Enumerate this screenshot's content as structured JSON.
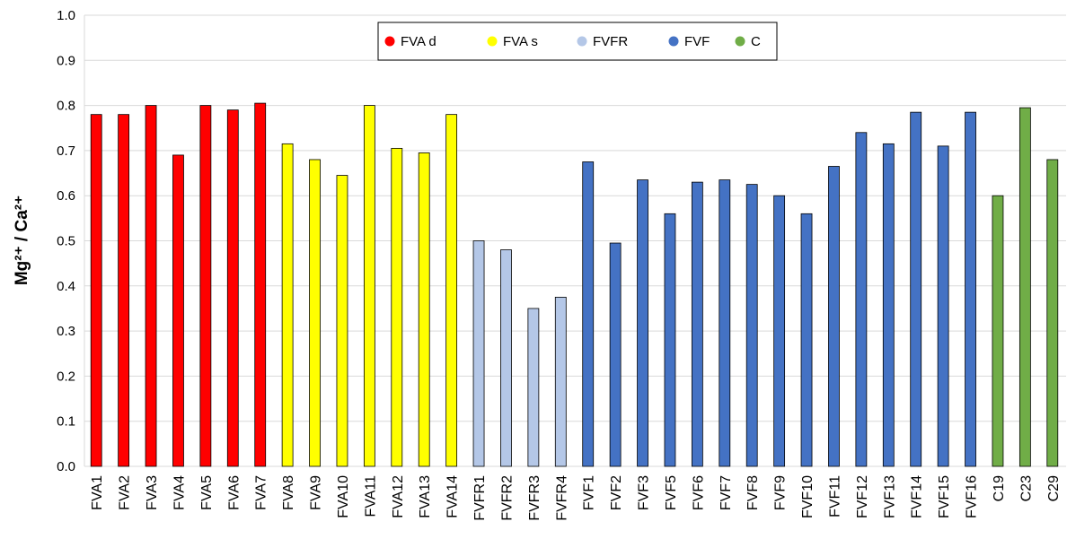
{
  "chart_data": {
    "type": "bar",
    "ylabel": "Mg²⁺ / Ca²⁺",
    "categories": [
      "FVA1",
      "FVA2",
      "FVA3",
      "FVA4",
      "FVA5",
      "FVA6",
      "FVA7",
      "FVA8",
      "FVA9",
      "FVA10",
      "FVA11",
      "FVA12",
      "FVA13",
      "FVA14",
      "FVFR1",
      "FVFR2",
      "FVFR3",
      "FVFR4",
      "FVF1",
      "FVF2",
      "FVF3",
      "FVF5",
      "FVF6",
      "FVF7",
      "FVF8",
      "FVF9",
      "FVF10",
      "FVF11",
      "FVF12",
      "FVF13",
      "FVF14",
      "FVF15",
      "FVF16",
      "C19",
      "C23",
      "C29"
    ],
    "series": [
      {
        "name": "FVA d",
        "color": "#ff0000",
        "values": [
          0.78,
          0.78,
          0.8,
          0.69,
          0.8,
          0.79,
          0.805,
          null,
          null,
          null,
          null,
          null,
          null,
          null,
          null,
          null,
          null,
          null,
          null,
          null,
          null,
          null,
          null,
          null,
          null,
          null,
          null,
          null,
          null,
          null,
          null,
          null,
          null,
          null,
          null,
          null
        ]
      },
      {
        "name": "FVA s",
        "color": "#ffff00",
        "values": [
          null,
          null,
          null,
          null,
          null,
          null,
          null,
          0.715,
          0.68,
          0.645,
          0.8,
          0.705,
          0.695,
          0.78,
          null,
          null,
          null,
          null,
          null,
          null,
          null,
          null,
          null,
          null,
          null,
          null,
          null,
          null,
          null,
          null,
          null,
          null,
          null,
          null,
          null,
          null
        ]
      },
      {
        "name": "FVFR",
        "color": "#b4c7e7",
        "values": [
          null,
          null,
          null,
          null,
          null,
          null,
          null,
          null,
          null,
          null,
          null,
          null,
          null,
          null,
          0.5,
          0.48,
          0.35,
          0.375,
          null,
          null,
          null,
          null,
          null,
          null,
          null,
          null,
          null,
          null,
          null,
          null,
          null,
          null,
          null,
          null,
          null,
          null
        ]
      },
      {
        "name": "FVF",
        "color": "#4472c4",
        "values": [
          null,
          null,
          null,
          null,
          null,
          null,
          null,
          null,
          null,
          null,
          null,
          null,
          null,
          null,
          null,
          null,
          null,
          null,
          0.675,
          0.495,
          0.635,
          0.56,
          0.63,
          0.635,
          0.625,
          0.6,
          0.56,
          0.665,
          0.74,
          0.715,
          0.785,
          0.71,
          0.785,
          null,
          null,
          null
        ]
      },
      {
        "name": "C",
        "color": "#70ad47",
        "values": [
          null,
          null,
          null,
          null,
          null,
          null,
          null,
          null,
          null,
          null,
          null,
          null,
          null,
          null,
          null,
          null,
          null,
          null,
          null,
          null,
          null,
          null,
          null,
          null,
          null,
          null,
          null,
          null,
          null,
          null,
          null,
          null,
          null,
          0.6,
          0.795,
          0.68
        ]
      }
    ],
    "ylim": [
      0,
      1
    ],
    "yticks": [
      {
        "value": 0,
        "label": "0.0"
      },
      0.1,
      0.2,
      0.3,
      0.4,
      0.5,
      0.6,
      0.7,
      0.8,
      0.9,
      {
        "value": 1,
        "label": "1.0"
      }
    ],
    "grid": true,
    "legend": "top"
  }
}
